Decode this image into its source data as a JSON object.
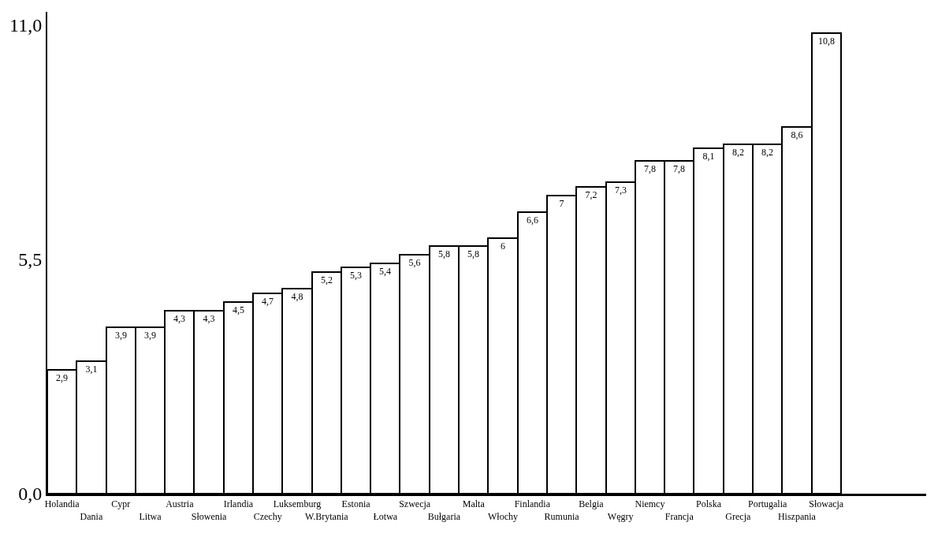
{
  "chart_data": {
    "type": "bar",
    "categories": [
      "Holandia",
      "Dania",
      "Cypr",
      "Litwa",
      "Austria",
      "Słowenia",
      "Irlandia",
      "Czechy",
      "Luksemburg",
      "W.Brytania",
      "Estonia",
      "Łotwa",
      "Szwecja",
      "Bułgaria",
      "Malta",
      "Włochy",
      "Finlandia",
      "Rumunia",
      "Belgia",
      "Węgry",
      "Niemcy",
      "Francja",
      "Polska",
      "Grecja",
      "Portugalia",
      "Hiszpania",
      "Słowacja"
    ],
    "values": [
      2.9,
      3.1,
      3.9,
      3.9,
      4.3,
      4.3,
      4.5,
      4.7,
      4.8,
      5.2,
      5.3,
      5.4,
      5.6,
      5.8,
      5.8,
      6,
      6.6,
      7,
      7.2,
      7.3,
      7.8,
      7.8,
      8.1,
      8.2,
      8.2,
      8.6,
      10.8
    ],
    "value_labels": [
      "2,9",
      "3,1",
      "3,9",
      "3,9",
      "4,3",
      "4,3",
      "4,5",
      "4,7",
      "4,8",
      "5,2",
      "5,3",
      "5,4",
      "5,6",
      "5,8",
      "5,8",
      "6",
      "6,6",
      "7",
      "7,2",
      "7,3",
      "7,8",
      "7,8",
      "8,1",
      "8,2",
      "8,2",
      "8,6",
      "10,8"
    ],
    "color": "#ffffff",
    "ylim": [
      0,
      11.3
    ],
    "yticks": [
      {
        "value": 0,
        "label": "0,0"
      },
      {
        "value": 5.5,
        "label": "5,5"
      },
      {
        "value": 11,
        "label": "11,0"
      }
    ],
    "ylabel": null
  }
}
